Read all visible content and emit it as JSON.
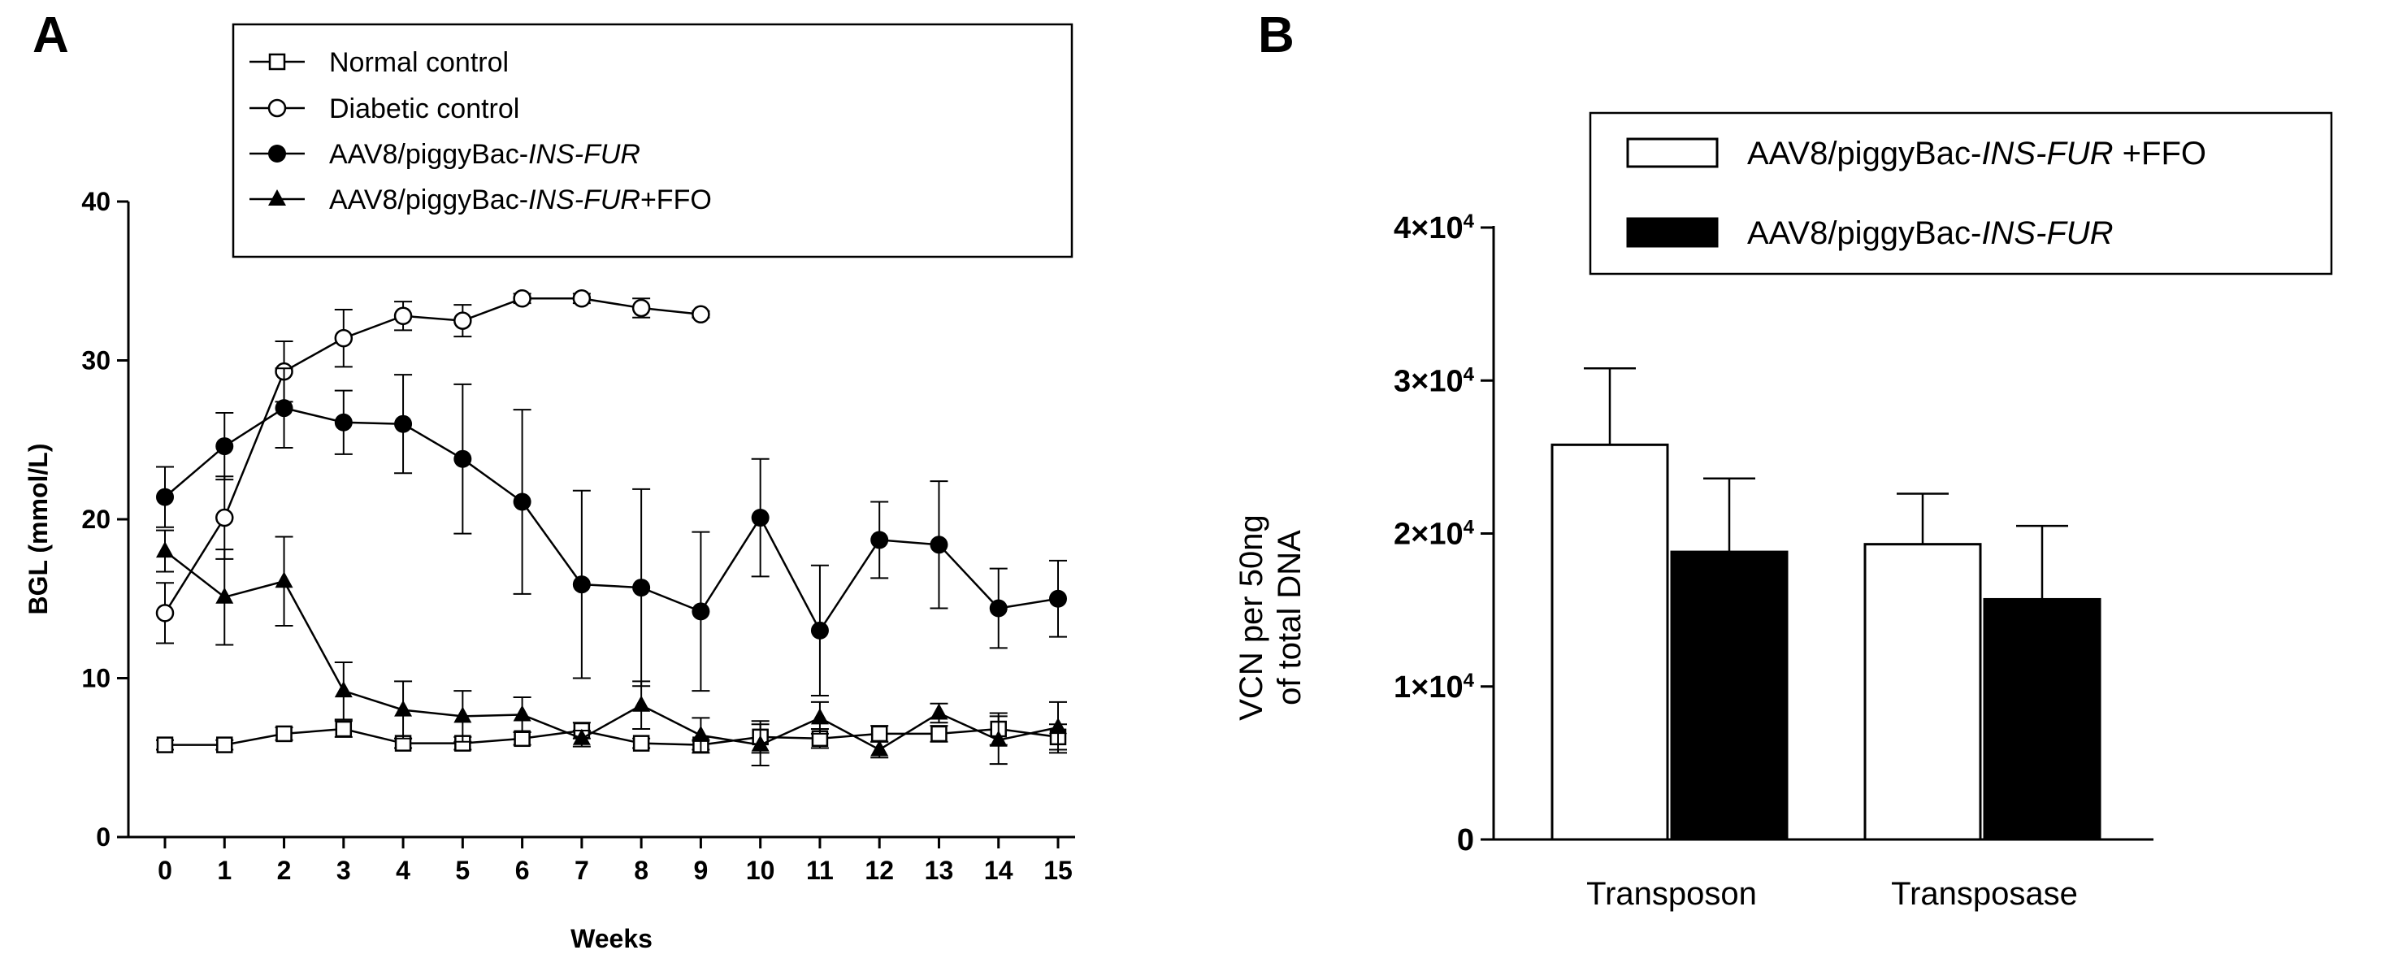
{
  "chart_data": [
    {
      "panel": "A",
      "type": "line",
      "xlabel": "Weeks",
      "ylabel": "BGL (mmol/L)",
      "ylim": [
        0,
        40
      ],
      "yticks": [
        0,
        10,
        20,
        30,
        40
      ],
      "xticks": [
        0,
        1,
        2,
        3,
        4,
        5,
        6,
        7,
        8,
        9,
        10,
        11,
        12,
        13,
        14,
        15
      ],
      "legend_position": "top",
      "series": [
        {
          "name": "Normal control",
          "legend": {
            "prefix": "Normal control",
            "italic": "",
            "suffix": ""
          },
          "marker": "square-open",
          "x": [
            0,
            1,
            2,
            3,
            4,
            5,
            6,
            7,
            8,
            9,
            10,
            11,
            12,
            13,
            14,
            15
          ],
          "values": [
            5.8,
            5.8,
            6.5,
            6.8,
            5.9,
            5.9,
            6.2,
            6.7,
            5.9,
            5.8,
            6.3,
            6.2,
            6.5,
            6.5,
            6.8,
            6.3
          ],
          "err": [
            0.3,
            0.3,
            0.4,
            0.5,
            0.3,
            0.4,
            0.4,
            0.5,
            0.3,
            0.3,
            1.0,
            0.6,
            0.5,
            0.5,
            1.0,
            0.8
          ]
        },
        {
          "name": "Diabetic control",
          "legend": {
            "prefix": "Diabetic control",
            "italic": "",
            "suffix": ""
          },
          "marker": "circle-open",
          "x": [
            0,
            1,
            2,
            3,
            4,
            5,
            6,
            7,
            8,
            9
          ],
          "values": [
            14.1,
            20.1,
            29.3,
            31.4,
            32.8,
            32.5,
            33.9,
            33.9,
            33.3,
            32.9
          ],
          "err": [
            1.9,
            2.6,
            1.9,
            1.8,
            0.9,
            1.0,
            0.3,
            0.3,
            0.6,
            0.2
          ]
        },
        {
          "name": "AAV8/piggyBac-INS-FUR",
          "legend": {
            "prefix": "AAV8/piggyBac-",
            "italic": "INS-FUR",
            "suffix": ""
          },
          "marker": "circle-filled",
          "x": [
            0,
            1,
            2,
            3,
            4,
            5,
            6,
            7,
            8,
            9,
            10,
            11,
            12,
            13,
            14,
            15
          ],
          "values": [
            21.4,
            24.6,
            27.0,
            26.1,
            26.0,
            23.8,
            21.1,
            15.9,
            15.7,
            14.2,
            20.1,
            13.0,
            18.7,
            18.4,
            14.4,
            15.0
          ],
          "err": [
            1.9,
            2.1,
            2.5,
            2.0,
            3.1,
            4.7,
            5.8,
            5.9,
            6.2,
            5.0,
            3.7,
            4.1,
            2.4,
            4.0,
            2.5,
            2.4
          ]
        },
        {
          "name": "AAV8/piggyBac-INS-FUR+FFO",
          "legend": {
            "prefix": "AAV8/piggyBac-",
            "italic": "INS-FUR",
            "suffix": "+FFO"
          },
          "marker": "triangle-filled",
          "x": [
            0,
            1,
            2,
            3,
            4,
            5,
            6,
            7,
            8,
            9,
            10,
            11,
            12,
            13,
            14,
            15
          ],
          "values": [
            18.0,
            15.1,
            16.1,
            9.2,
            8.0,
            7.6,
            7.7,
            6.2,
            8.3,
            6.4,
            5.8,
            7.5,
            5.5,
            7.8,
            6.1,
            6.9
          ],
          "err": [
            1.3,
            3.0,
            2.8,
            1.8,
            1.8,
            1.6,
            1.1,
            0.5,
            1.5,
            1.1,
            1.3,
            1.0,
            0.5,
            0.6,
            1.5,
            1.6
          ]
        }
      ]
    },
    {
      "panel": "B",
      "type": "bar",
      "ylabel_lines": [
        "VCN per 50ng",
        "of total DNA"
      ],
      "ylim": [
        0,
        40000
      ],
      "yticks": [
        {
          "value": 0,
          "label": "0",
          "exp": ""
        },
        {
          "value": 10000,
          "label": "1×10",
          "exp": "4"
        },
        {
          "value": 20000,
          "label": "2×10",
          "exp": "4"
        },
        {
          "value": 30000,
          "label": "3×10",
          "exp": "4"
        },
        {
          "value": 40000,
          "label": "4×10",
          "exp": "4"
        }
      ],
      "categories": [
        "Transposon",
        "Transposase"
      ],
      "legend_position": "top-right",
      "series": [
        {
          "name": "AAV8/piggyBac-INS-FUR +FFO",
          "legend": {
            "prefix": "AAV8/piggyBac-",
            "italic": "INS-FUR",
            "suffix": " +FFO"
          },
          "fill": "#ffffff",
          "values": [
            25800,
            19300
          ],
          "err": [
            5000,
            3300
          ]
        },
        {
          "name": "AAV8/piggyBac-INS-FUR",
          "legend": {
            "prefix": "AAV8/piggyBac-",
            "italic": "INS-FUR",
            "suffix": ""
          },
          "fill": "#000000",
          "values": [
            18800,
            15700
          ],
          "err": [
            4800,
            4800
          ]
        }
      ]
    }
  ]
}
